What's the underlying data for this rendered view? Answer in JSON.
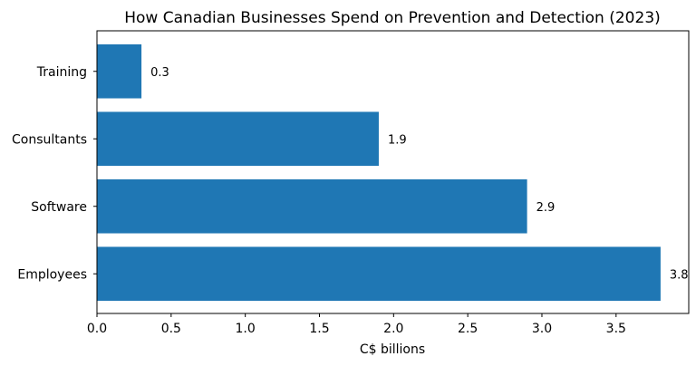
{
  "chart_data": {
    "type": "bar",
    "orientation": "horizontal",
    "title": "How Canadian Businesses Spend on Prevention and Detection (2023)",
    "xlabel": "C$ billions",
    "ylabel": "",
    "categories": [
      "Employees",
      "Software",
      "Consultants",
      "Training"
    ],
    "values": [
      3.8,
      2.9,
      1.9,
      0.3
    ],
    "data_labels": [
      "3.8",
      "2.9",
      "1.9",
      "0.3"
    ],
    "xlim": [
      0,
      3.99
    ],
    "xticks": [
      0.0,
      0.5,
      1.0,
      1.5,
      2.0,
      2.5,
      3.0,
      3.5
    ],
    "xtick_labels": [
      "0.0",
      "0.5",
      "1.0",
      "1.5",
      "2.0",
      "2.5",
      "3.0",
      "3.5"
    ],
    "bar_color": "#1f77b4",
    "grid": false,
    "legend": "none"
  }
}
